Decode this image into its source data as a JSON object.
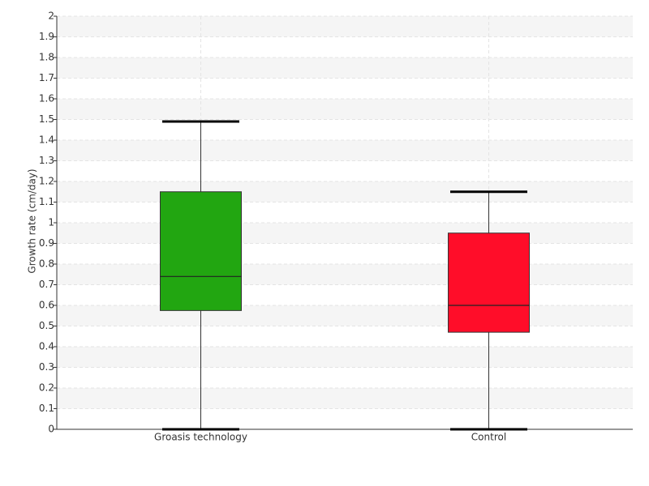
{
  "chart_data": {
    "type": "box",
    "y_label": "Growth rate (cm/day)",
    "categories": [
      "Groasis technology",
      "Control"
    ],
    "boxes": [
      {
        "whislo": 0,
        "q1": 0.575,
        "med": 0.74,
        "q3": 1.15,
        "whishi": 1.49,
        "color": "#22a611"
      },
      {
        "whislo": 0,
        "q1": 0.47,
        "med": 0.6,
        "q3": 0.95,
        "whishi": 1.15,
        "color": "#ff0d29"
      }
    ],
    "ylim": [
      0,
      2
    ],
    "yticks": [
      0,
      0.1,
      0.2,
      0.3,
      0.4,
      0.5,
      0.6,
      0.7,
      0.8,
      0.9,
      1,
      1.1,
      1.2,
      1.3,
      1.4,
      1.5,
      1.6,
      1.7,
      1.8,
      1.9,
      2
    ],
    "grid": true
  }
}
